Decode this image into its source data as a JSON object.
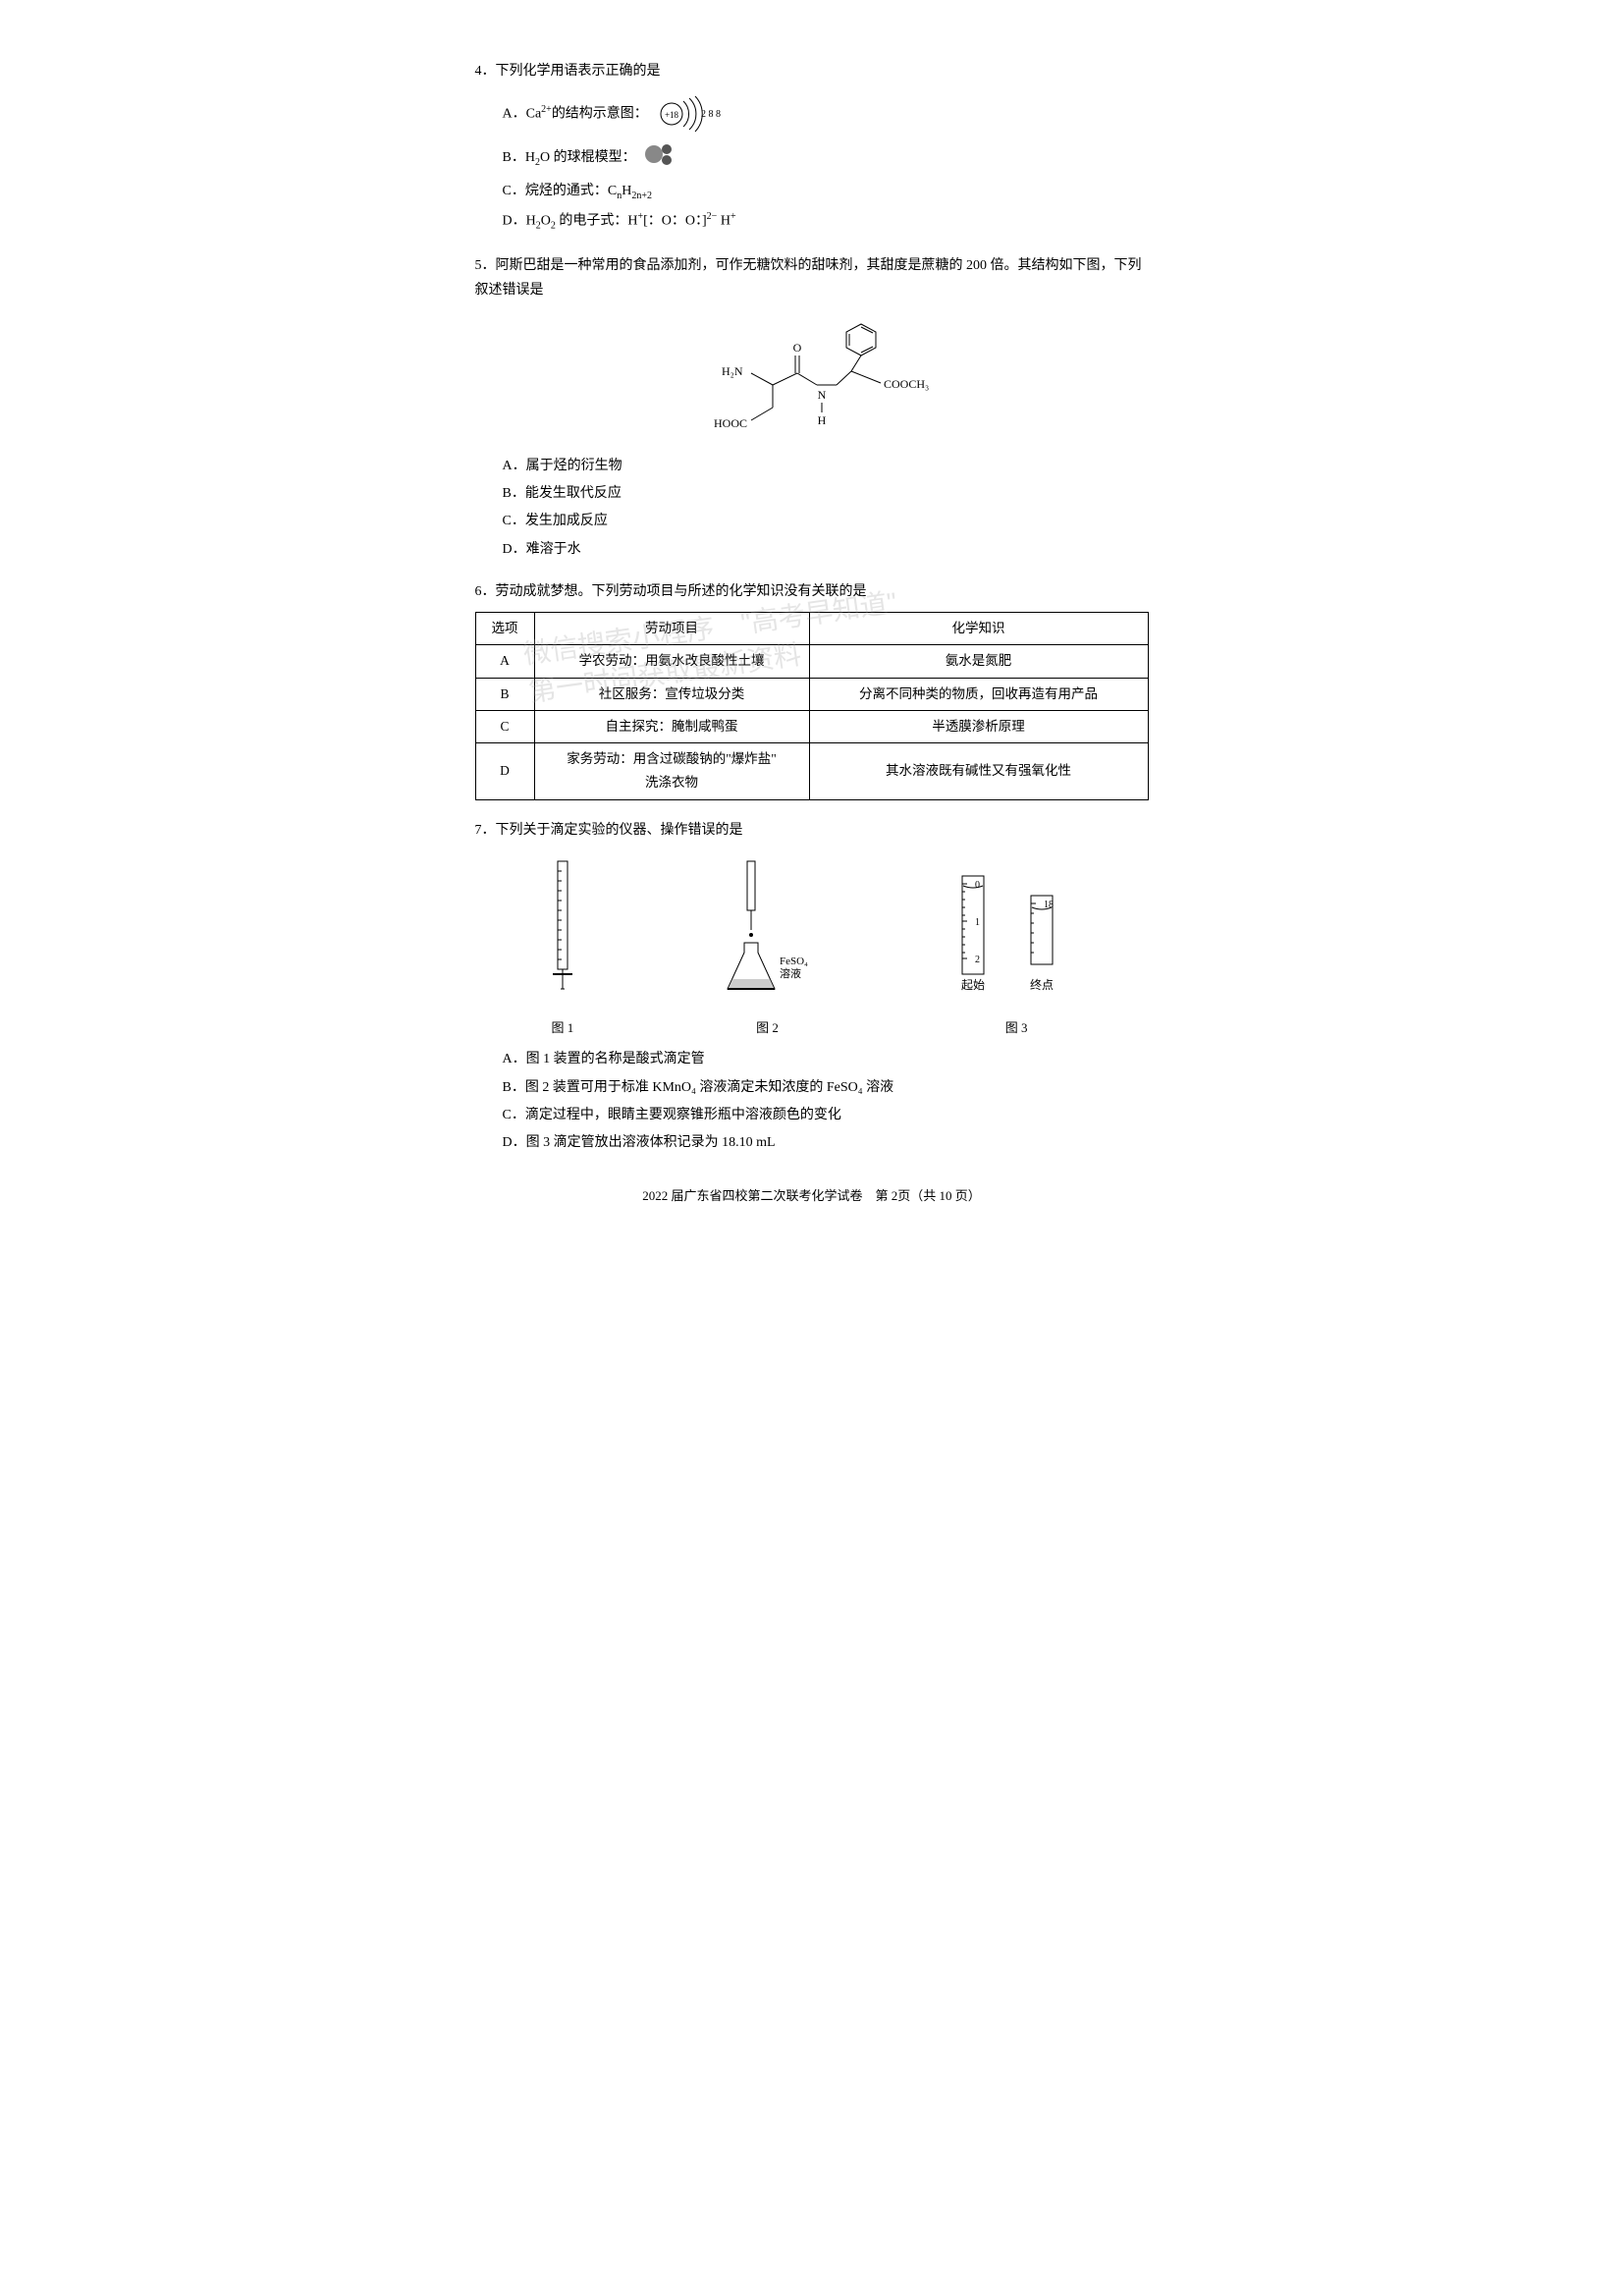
{
  "q4": {
    "stem": "4．下列化学用语表示正确的是",
    "optA_prefix": "A．Ca",
    "optA_sup": "2+",
    "optA_suffix": "的结构示意图：",
    "atom": {
      "nucleus": "+18",
      "shells": "2 8 8"
    },
    "optB_prefix": "B．H",
    "optB_sub": "2",
    "optB_suffix": "O 的球棍模型：",
    "optC_prefix": "C．烷烃的通式：C",
    "optC_sub1": "n",
    "optC_mid": "H",
    "optC_sub2": "2n+2",
    "optD_prefix": "D．H",
    "optD_sub1": "2",
    "optD_mid1": "O",
    "optD_sub2": "2",
    "optD_mid2": " 的电子式：H",
    "optD_sup1": "+",
    "optD_formula": "[：O：O：]",
    "optD_sup2": "2−",
    "optD_end": " H",
    "optD_sup3": "+"
  },
  "q5": {
    "stem": "5．阿斯巴甜是一种常用的食品添加剂，可作无糖饮料的甜味剂，其甜度是蔗糖的 200 倍。其结构如下图，下列叙述错误是",
    "labels": {
      "nh2": "H₂N",
      "O": "O",
      "N": "N",
      "H": "H",
      "hooc": "HOOC",
      "cooch3": "COOCH₃"
    },
    "optA": "A．属于烃的衍生物",
    "optB": "B．能发生取代反应",
    "optC": "C．发生加成反应",
    "optD": "D．难溶于水"
  },
  "q6": {
    "stem": "6．劳动成就梦想。下列劳动项目与所述的化学知识没有关联的是",
    "headers": [
      "选项",
      "劳动项目",
      "化学知识"
    ],
    "rows": [
      [
        "A",
        "学农劳动：用氨水改良酸性土壤",
        "氨水是氮肥"
      ],
      [
        "B",
        "社区服务：宣传垃圾分类",
        "分离不同种类的物质，回收再造有用产品"
      ],
      [
        "C",
        "自主探究：腌制咸鸭蛋",
        "半透膜渗析原理"
      ],
      [
        "D",
        "家务劳动：用含过碳酸钠的\"爆炸盐\"洗涤衣物",
        "其水溶液既有碱性又有强氧化性"
      ]
    ]
  },
  "q7": {
    "stem": "7．下列关于滴定实验的仪器、操作错误的是",
    "fig1_caption": "图 1",
    "fig2_caption": "图 2",
    "fig2_label1": "FeSO₄",
    "fig2_label2": "溶液",
    "fig3_caption": "图 3",
    "fig3_start": "起始",
    "fig3_end": "终点",
    "fig3_val0": "0",
    "fig3_val1": "1",
    "fig3_val2": "2",
    "fig3_val18": "18",
    "optA": "A．图 1 装置的名称是酸式滴定管",
    "optB": "B．图 2 装置可用于标准 KMnO₄ 溶液滴定未知浓度的 FeSO₄ 溶液",
    "optC": "C．滴定过程中，眼睛主要观察锥形瓶中溶液颜色的变化",
    "optD": "D．图 3 滴定管放出溶液体积记录为 18.10 mL"
  },
  "footer": "2022 届广东省四校第二次联考化学试卷　第 2页（共 10 页）",
  "watermark_line1": "微信搜索小程序　\"高考早知道\"",
  "watermark_line2": "第一时间获取最新资料"
}
